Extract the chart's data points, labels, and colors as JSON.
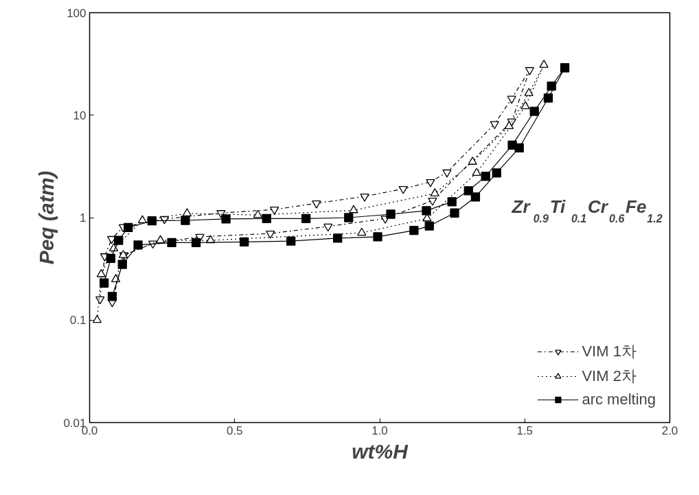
{
  "chart_data": {
    "type": "line",
    "xlabel": "wt%H",
    "ylabel": "Peq (atm)",
    "log": "y",
    "xlim": [
      0,
      2
    ],
    "xticks": [
      {
        "value": 0,
        "label": "0.0"
      },
      0.5,
      {
        "value": 1,
        "label": "1.0"
      },
      1.5,
      {
        "value": 2,
        "label": "2.0"
      }
    ],
    "ylim": [
      0.01,
      100
    ],
    "yticks": [
      0.01,
      0.1,
      1,
      10,
      100
    ],
    "grid": false,
    "legend": "bottom right",
    "annotations": [
      "Zr$_{0.9}$Ti$_{0.1}$Cr$_{0.6}$Fe$_{1.2}$"
    ],
    "series": [
      {
        "name": "VIM 1차",
        "color": "#000000",
        "marker": "triangle_down",
        "line_style": "dashdot",
        "x": [
          0.036,
          0.052,
          0.076,
          0.116,
          0.258,
          0.453,
          0.637,
          0.782,
          0.948,
          1.081,
          1.175,
          1.232,
          1.396,
          1.455,
          1.517,
          1.455,
          1.182,
          1.019,
          0.822,
          0.623,
          0.38,
          0.218,
          0.118,
          0.078
        ],
        "values": [
          0.16,
          0.42,
          0.62,
          0.81,
          0.97,
          1.11,
          1.2,
          1.38,
          1.61,
          1.91,
          2.23,
          2.77,
          8.2,
          14.5,
          27.6,
          8.7,
          1.47,
          0.98,
          0.82,
          0.7,
          0.65,
          0.56,
          0.43,
          0.15
        ]
      },
      {
        "name": "VIM 2차",
        "color": "#000000",
        "marker": "triangle",
        "line_style": "dotted",
        "x": [
          0.026,
          0.04,
          0.083,
          0.182,
          0.336,
          0.58,
          0.91,
          1.19,
          1.32,
          1.446,
          1.514,
          1.566,
          1.502,
          1.334,
          1.163,
          0.938,
          0.417,
          0.244,
          0.116,
          0.09
        ],
        "values": [
          0.1,
          0.28,
          0.5,
          0.94,
          1.1,
          1.06,
          1.18,
          1.72,
          3.5,
          7.8,
          16.4,
          30.9,
          12.2,
          2.73,
          0.98,
          0.71,
          0.6,
          0.6,
          0.43,
          0.25
        ]
      },
      {
        "name": "arc melting",
        "color": "#000000",
        "marker": "square",
        "line_style": "solid",
        "x": [
          0.05,
          0.073,
          0.1,
          0.133,
          0.215,
          0.33,
          0.47,
          0.61,
          0.746,
          0.893,
          1.038,
          1.161,
          1.249,
          1.306,
          1.365,
          1.457,
          1.533,
          1.592,
          1.638,
          1.581,
          1.481,
          1.403,
          1.33,
          1.258,
          1.171,
          1.118,
          0.993,
          0.855,
          0.694,
          0.533,
          0.367,
          0.283,
          0.167,
          0.113,
          0.078
        ],
        "values": [
          0.23,
          0.4,
          0.6,
          0.8,
          0.93,
          0.94,
          0.97,
          0.98,
          0.98,
          1.0,
          1.08,
          1.17,
          1.43,
          1.83,
          2.53,
          5.1,
          10.9,
          19.2,
          29,
          14.7,
          4.8,
          2.73,
          1.59,
          1.11,
          0.83,
          0.75,
          0.65,
          0.63,
          0.59,
          0.58,
          0.57,
          0.57,
          0.54,
          0.35,
          0.17
        ]
      }
    ]
  }
}
